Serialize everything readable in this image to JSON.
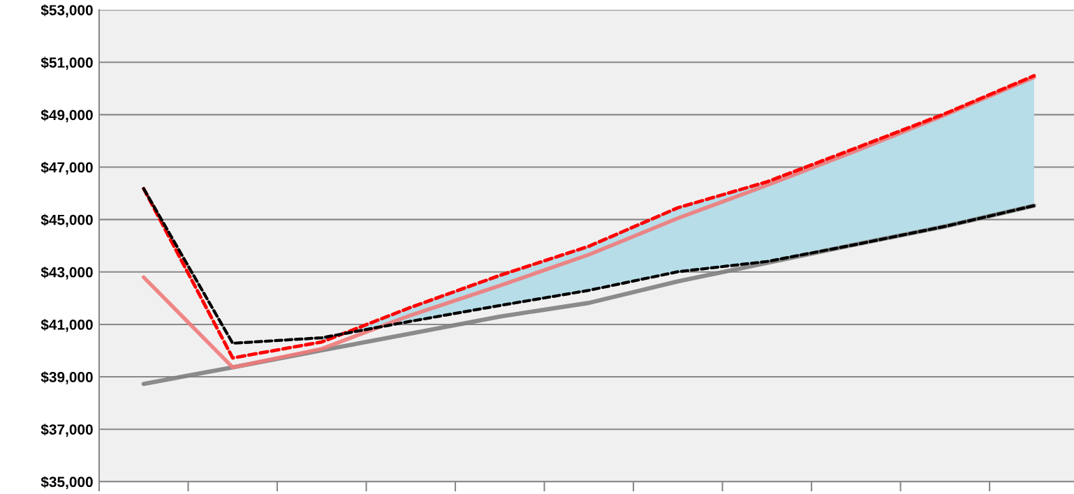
{
  "chart_data": {
    "type": "line",
    "categories": [
      null,
      null,
      null,
      null,
      null,
      null,
      null,
      null,
      null,
      null,
      null
    ],
    "ylim": [
      35000,
      53000
    ],
    "yticks": [
      {
        "value": 35000,
        "label": "$35,000"
      },
      {
        "value": 37000,
        "label": "$37,000"
      },
      {
        "value": 39000,
        "label": "$39,000"
      },
      {
        "value": 41000,
        "label": "$41,000"
      },
      {
        "value": 43000,
        "label": "$43,000"
      },
      {
        "value": 45000,
        "label": "$45,000"
      },
      {
        "value": 47000,
        "label": "$47,000"
      },
      {
        "value": 49000,
        "label": "$49,000"
      },
      {
        "value": 51000,
        "label": "$51,000"
      },
      {
        "value": 53000,
        "label": "$53,000"
      }
    ],
    "grid": "y",
    "marker": "none",
    "series": [
      {
        "color": "#7f7f7f",
        "line_style": "solid",
        "values": [
          38730,
          39360,
          40010,
          40650,
          41300,
          41820,
          42640,
          43350,
          44050,
          44740,
          45530
        ]
      },
      {
        "color": "#f07a7a",
        "line_style": "solid",
        "values": [
          42800,
          39360,
          40070,
          41350,
          42480,
          43660,
          45050,
          46310,
          47620,
          48990,
          50430
        ]
      },
      {
        "color": "#ff0000",
        "line_style": "dashed",
        "values": [
          46180,
          39720,
          40330,
          41650,
          42870,
          43980,
          45450,
          46440,
          47730,
          49040,
          50490
        ]
      },
      {
        "color": "#000000",
        "line_style": "dashed",
        "values": [
          46180,
          40280,
          40490,
          41120,
          41720,
          42300,
          43010,
          43400,
          44050,
          44740,
          45530
        ],
        "lower": [
          null,
          null,
          40490,
          41120,
          41720,
          42300,
          43010,
          43400,
          44050,
          44740,
          45530
        ],
        "upper": [
          null,
          null,
          40330,
          41650,
          42870,
          43980,
          45450,
          46440,
          47730,
          49040,
          50490
        ]
      }
    ]
  }
}
